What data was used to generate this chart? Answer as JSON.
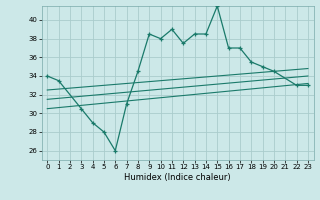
{
  "title": "",
  "xlabel": "Humidex (Indice chaleur)",
  "ylabel": "",
  "bg_color": "#cce8e8",
  "grid_color": "#aacccc",
  "line_color": "#1a7a6a",
  "xlim": [
    -0.5,
    23.5
  ],
  "ylim": [
    25.0,
    41.5
  ],
  "yticks": [
    26,
    28,
    30,
    32,
    34,
    36,
    38,
    40
  ],
  "xticks": [
    0,
    1,
    2,
    3,
    4,
    5,
    6,
    7,
    8,
    9,
    10,
    11,
    12,
    13,
    14,
    15,
    16,
    17,
    18,
    19,
    20,
    21,
    22,
    23
  ],
  "curve_x": [
    0,
    1,
    3,
    4,
    5,
    6,
    7,
    8,
    9,
    10,
    11,
    12,
    13,
    14,
    15,
    16,
    17,
    18,
    19,
    20,
    22,
    23
  ],
  "curve_y": [
    34.0,
    33.5,
    30.5,
    29.0,
    28.0,
    26.0,
    31.0,
    34.5,
    38.5,
    38.0,
    39.0,
    37.5,
    38.5,
    38.5,
    41.5,
    37.0,
    37.0,
    35.5,
    35.0,
    34.5,
    33.0,
    33.0
  ],
  "line1_x": [
    0,
    23
  ],
  "line1_y": [
    32.5,
    34.8
  ],
  "line2_x": [
    0,
    23
  ],
  "line2_y": [
    31.5,
    34.0
  ],
  "line3_x": [
    0,
    23
  ],
  "line3_y": [
    30.5,
    33.2
  ]
}
